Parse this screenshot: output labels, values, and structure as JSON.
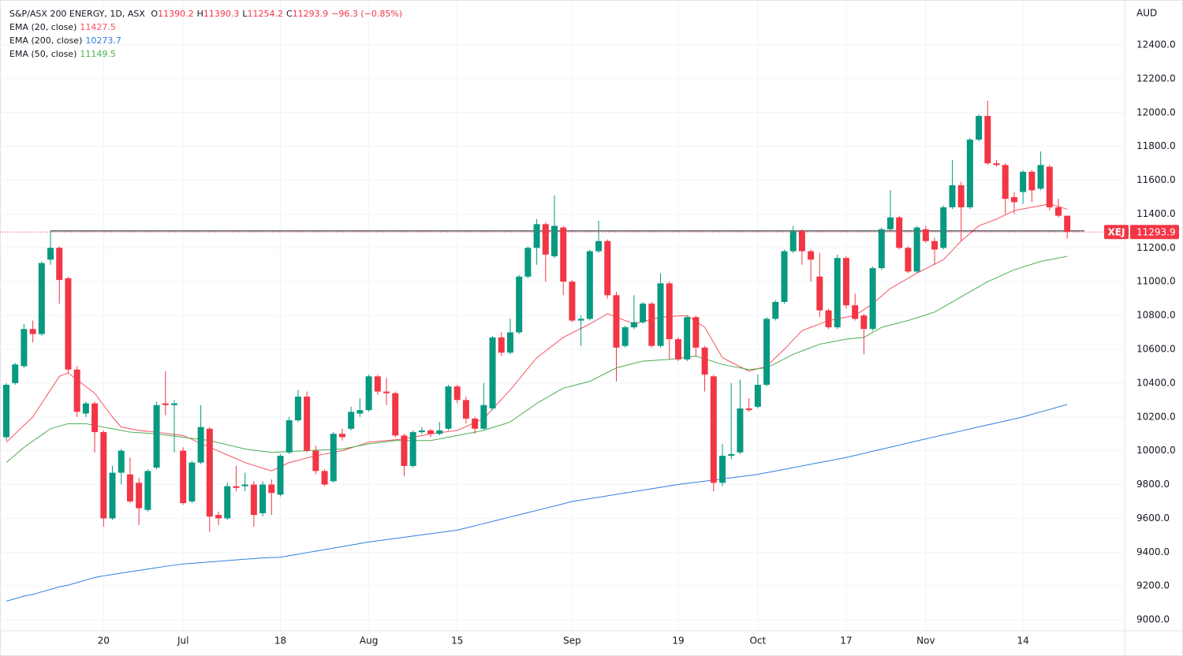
{
  "chart_data": {
    "type": "candlestick",
    "title": "S&P/ASX 200 ENERGY, 1D, ASX",
    "ohlc_letters": [
      "O",
      "H",
      "L",
      "C"
    ],
    "change": "−96.3 (−0.85%)",
    "currency": "AUD",
    "symbol": "XEJ",
    "categories": [
      null,
      null,
      null,
      null,
      null,
      null,
      null,
      null,
      null,
      null,
      null,
      "20",
      null,
      null,
      null,
      null,
      null,
      null,
      null,
      null,
      "Jul",
      null,
      null,
      null,
      null,
      null,
      null,
      null,
      null,
      null,
      null,
      "18",
      null,
      null,
      null,
      null,
      null,
      null,
      null,
      null,
      null,
      "Aug",
      null,
      null,
      null,
      null,
      null,
      null,
      null,
      null,
      null,
      "15",
      null,
      null,
      null,
      null,
      null,
      null,
      null,
      null,
      null,
      null,
      null,
      null,
      "Sep",
      null,
      null,
      null,
      null,
      null,
      null,
      null,
      null,
      null,
      null,
      null,
      "19",
      null,
      null,
      null,
      null,
      null,
      null,
      null,
      null,
      "Oct",
      null,
      null,
      null,
      null,
      null,
      null,
      null,
      null,
      null,
      "17",
      null,
      null,
      null,
      null,
      null,
      null,
      null,
      null,
      "Nov",
      null,
      null,
      null,
      null,
      null,
      null,
      null,
      null,
      null,
      null,
      "14",
      null,
      null,
      null,
      null,
      null
    ],
    "candles": {
      "up_color": "#089981",
      "down_color": "#f23645",
      "open": [
        10080,
        10400,
        10500,
        10720,
        10690,
        11130,
        11200,
        11020,
        10480,
        10220,
        10280,
        10110,
        9600,
        9870,
        9860,
        9810,
        9650,
        9900,
        10280,
        10270,
        10000,
        9700,
        9930,
        10130,
        9620,
        9600,
        9790,
        9790,
        9800,
        9630,
        9800,
        9740,
        9990,
        10180,
        10320,
        10000,
        9880,
        9820,
        10100,
        10130,
        10220,
        10240,
        10440,
        10350,
        10340,
        10090,
        9910,
        10110,
        10120,
        10100,
        10130,
        10380,
        10300,
        10190,
        10130,
        10250,
        10670,
        10580,
        10700,
        11030,
        11200,
        11340,
        11150,
        11320,
        11000,
        10770,
        10780,
        11180,
        11240,
        10920,
        10620,
        10730,
        10760,
        10870,
        10620,
        10990,
        10660,
        10540,
        10790,
        10610,
        10440,
        9810,
        9970,
        9990,
        10250,
        10260,
        10390,
        10780,
        10880,
        11180,
        11300,
        11180,
        11030,
        10830,
        10730,
        11140,
        10860,
        10800,
        10720,
        11080,
        11310,
        11380,
        11200,
        11060,
        11310,
        11240,
        11200,
        11440,
        11570,
        11440,
        11840,
        11980,
        11700,
        11690,
        11500,
        11530,
        11650,
        11550,
        11680,
        11440,
        11390.2
      ],
      "high": [
        10400,
        10520,
        10750,
        10770,
        11120,
        11300,
        11210,
        11030,
        10500,
        10290,
        10290,
        10120,
        9910,
        10010,
        9960,
        9840,
        9890,
        10290,
        10470,
        10300,
        10020,
        9940,
        10270,
        10140,
        9640,
        9810,
        9910,
        9870,
        9820,
        9820,
        9830,
        9980,
        10200,
        10360,
        10350,
        10030,
        9890,
        10110,
        10130,
        10260,
        10310,
        10450,
        10450,
        10430,
        10350,
        10100,
        10120,
        10140,
        10130,
        10170,
        10390,
        10390,
        10320,
        10200,
        10400,
        10680,
        10700,
        10780,
        11040,
        11210,
        11370,
        11350,
        11510,
        11330,
        11010,
        10800,
        11190,
        11360,
        11250,
        10940,
        10740,
        10920,
        10880,
        10880,
        11050,
        11000,
        10670,
        10800,
        10800,
        10620,
        10450,
        10040,
        10400,
        10420,
        10310,
        10450,
        10790,
        10890,
        11190,
        11330,
        11310,
        11190,
        11170,
        10840,
        11160,
        11150,
        10930,
        10810,
        11090,
        11320,
        11540,
        11390,
        11210,
        11330,
        11330,
        11260,
        11450,
        11720,
        11590,
        11850,
        11990,
        12070,
        11720,
        11700,
        11530,
        11660,
        11660,
        11770,
        11690,
        11490,
        11390.3
      ],
      "low": [
        10060,
        10390,
        10490,
        10640,
        10680,
        11100,
        10870,
        10460,
        10200,
        10200,
        9990,
        9550,
        9590,
        9800,
        9690,
        9560,
        9640,
        9890,
        10210,
        9990,
        9680,
        9690,
        9920,
        9520,
        9560,
        9590,
        9760,
        9760,
        9550,
        9610,
        9620,
        9730,
        9980,
        10170,
        9990,
        9860,
        9790,
        9810,
        10060,
        10120,
        10200,
        10230,
        10330,
        10270,
        10080,
        9850,
        9900,
        10100,
        10080,
        10090,
        10120,
        10280,
        10160,
        10100,
        10120,
        10240,
        10560,
        10570,
        10690,
        11020,
        11100,
        11000,
        11140,
        10920,
        10760,
        10620,
        10770,
        11170,
        10900,
        10410,
        10610,
        10720,
        10750,
        10610,
        10610,
        10540,
        10530,
        10530,
        10560,
        10350,
        9760,
        9790,
        9950,
        9980,
        10230,
        10250,
        10380,
        10770,
        10870,
        11170,
        11100,
        11000,
        10790,
        10720,
        10720,
        10840,
        10770,
        10570,
        10710,
        11070,
        11300,
        11190,
        11050,
        11050,
        11230,
        11100,
        11190,
        11430,
        11240,
        11430,
        11830,
        11690,
        11680,
        11400,
        11400,
        11460,
        11470,
        11540,
        11420,
        11380,
        11254.2
      ],
      "close": [
        10390,
        10510,
        10720,
        10690,
        11110,
        11200,
        11010,
        10480,
        10230,
        10280,
        10110,
        9600,
        9870,
        10000,
        9700,
        9660,
        9880,
        10270,
        10270,
        10280,
        9690,
        9930,
        10140,
        9610,
        9600,
        9790,
        9780,
        9800,
        9620,
        9800,
        9750,
        9970,
        10180,
        10320,
        10000,
        9880,
        9800,
        10100,
        10080,
        10230,
        10240,
        10440,
        10350,
        10340,
        10090,
        9910,
        10110,
        10120,
        10100,
        10120,
        10380,
        10300,
        10190,
        10130,
        10270,
        10670,
        10580,
        10700,
        11030,
        11200,
        11340,
        11160,
        11330,
        11000,
        10770,
        10780,
        11180,
        11240,
        10920,
        10610,
        10730,
        10760,
        10870,
        10620,
        10990,
        10660,
        10540,
        10790,
        10610,
        10450,
        9810,
        9970,
        9980,
        10250,
        10240,
        10390,
        10780,
        10880,
        11180,
        11300,
        11180,
        11130,
        10830,
        10730,
        11140,
        10860,
        10780,
        10720,
        11080,
        11310,
        11380,
        11200,
        11060,
        11320,
        11240,
        11190,
        11440,
        11570,
        11440,
        11840,
        11980,
        11700,
        11690,
        11490,
        11470,
        11650,
        11540,
        11690,
        11440,
        11390,
        11293.9
      ]
    },
    "series": [
      {
        "name": "EMA (20, close)",
        "color": "#f7525f",
        "values": [
          10050,
          10100,
          10150,
          10200,
          10280,
          10360,
          10440,
          10460,
          10420,
          10380,
          10340,
          10270,
          10200,
          10140,
          10130,
          10120,
          10115,
          10110,
          10103,
          10097,
          10090,
          10067,
          10043,
          10020,
          9998,
          9975,
          9953,
          9930,
          9913,
          9897,
          9880,
          9905,
          9930,
          9943,
          9957,
          9970,
          9980,
          9990,
          10000,
          10017,
          10033,
          10050,
          10055,
          10060,
          10065,
          10070,
          10080,
          10090,
          10100,
          10107,
          10113,
          10120,
          10143,
          10167,
          10190,
          10247,
          10303,
          10360,
          10423,
          10487,
          10550,
          10590,
          10630,
          10670,
          10697,
          10723,
          10750,
          10780,
          10810,
          10790,
          10770,
          10750,
          10763,
          10777,
          10790,
          10793,
          10797,
          10800,
          10765,
          10730,
          10640,
          10550,
          10523,
          10497,
          10470,
          10485,
          10500,
          10550,
          10600,
          10655,
          10710,
          10730,
          10750,
          10770,
          10780,
          10790,
          10800,
          10835,
          10870,
          10915,
          10960,
          10990,
          11020,
          11050,
          11077,
          11103,
          11130,
          11185,
          11240,
          11285,
          11330,
          11350,
          11370,
          11395,
          11420,
          11430,
          11440,
          11450,
          11460,
          11445,
          11427.5
        ]
      },
      {
        "name": "EMA (200, close)",
        "color": "#2f7fe0",
        "values": [
          9110,
          9125,
          9140,
          9150,
          9165,
          9180,
          9195,
          9205,
          9220,
          9235,
          9250,
          9260,
          9268,
          9276,
          9284,
          9292,
          9300,
          9308,
          9316,
          9323,
          9330,
          9334,
          9338,
          9342,
          9346,
          9350,
          9354,
          9358,
          9362,
          9366,
          9368,
          9370,
          9379,
          9388,
          9397,
          9406,
          9415,
          9424,
          9433,
          9442,
          9451,
          9460,
          9467,
          9474,
          9481,
          9488,
          9495,
          9502,
          9509,
          9516,
          9523,
          9530,
          9543,
          9556,
          9569,
          9582,
          9595,
          9608,
          9621,
          9634,
          9647,
          9660,
          9673,
          9686,
          9700,
          9708,
          9717,
          9725,
          9733,
          9742,
          9750,
          9758,
          9767,
          9775,
          9783,
          9792,
          9800,
          9807,
          9813,
          9820,
          9827,
          9833,
          9840,
          9847,
          9853,
          9860,
          9870,
          9880,
          9890,
          9900,
          9910,
          9920,
          9930,
          9940,
          9950,
          9960,
          9972,
          9984,
          9997,
          10009,
          10021,
          10033,
          10046,
          10058,
          10070,
          10082,
          10094,
          10105,
          10117,
          10129,
          10141,
          10153,
          10164,
          10176,
          10188,
          10200,
          10215,
          10230,
          10244,
          10259,
          10273.7
        ]
      },
      {
        "name": "EMA (50, close)",
        "color": "#4caf50",
        "values": [
          9930,
          9975,
          10020,
          10057,
          10093,
          10130,
          10145,
          10160,
          10160,
          10160,
          10150,
          10140,
          10130,
          10120,
          10110,
          10107,
          10103,
          10100,
          10093,
          10087,
          10080,
          10073,
          10067,
          10060,
          10048,
          10035,
          10023,
          10010,
          10003,
          9997,
          9990,
          9993,
          9995,
          9998,
          10000,
          10003,
          10005,
          10008,
          10010,
          10020,
          10030,
          10040,
          10047,
          10053,
          10060,
          10060,
          10060,
          10060,
          10060,
          10070,
          10080,
          10090,
          10100,
          10110,
          10120,
          10137,
          10153,
          10170,
          10207,
          10243,
          10280,
          10310,
          10340,
          10370,
          10383,
          10397,
          10410,
          10437,
          10463,
          10490,
          10503,
          10517,
          10530,
          10533,
          10537,
          10540,
          10547,
          10553,
          10560,
          10543,
          10527,
          10510,
          10500,
          10490,
          10480,
          10485,
          10490,
          10517,
          10543,
          10570,
          10590,
          10610,
          10630,
          10640,
          10650,
          10660,
          10665,
          10670,
          10700,
          10730,
          10743,
          10757,
          10770,
          10787,
          10803,
          10820,
          10850,
          10880,
          10910,
          10940,
          10970,
          11000,
          11023,
          11047,
          11070,
          11087,
          11103,
          11120,
          11130,
          11140,
          11149.5
        ]
      }
    ],
    "hline": 11300,
    "ylim": [
      8935,
      12666
    ],
    "yticks": [
      {
        "value": 9000,
        "label": "9000.0"
      },
      {
        "value": 9200,
        "label": "9200.0"
      },
      {
        "value": 9400,
        "label": "9400.0"
      },
      {
        "value": 9600,
        "label": "9600.0"
      },
      {
        "value": 9800,
        "label": "9800.0"
      },
      {
        "value": 10000,
        "label": "10000.0"
      },
      {
        "value": 10200,
        "label": "10200.0"
      },
      {
        "value": 10400,
        "label": "10400.0"
      },
      {
        "value": 10600,
        "label": "10600.0"
      },
      {
        "value": 10800,
        "label": "10800.0"
      },
      {
        "value": 11000,
        "label": "11000.0"
      },
      {
        "value": 11200,
        "label": "11200.0"
      },
      {
        "value": 11400,
        "label": "11400.0"
      },
      {
        "value": 11600,
        "label": "11600.0"
      },
      {
        "value": 11800,
        "label": "11800.0"
      },
      {
        "value": 12000,
        "label": "12000.0"
      },
      {
        "value": 12200,
        "label": "12200.0"
      },
      {
        "value": 12400,
        "label": "12400.0"
      }
    ],
    "grid": true
  }
}
